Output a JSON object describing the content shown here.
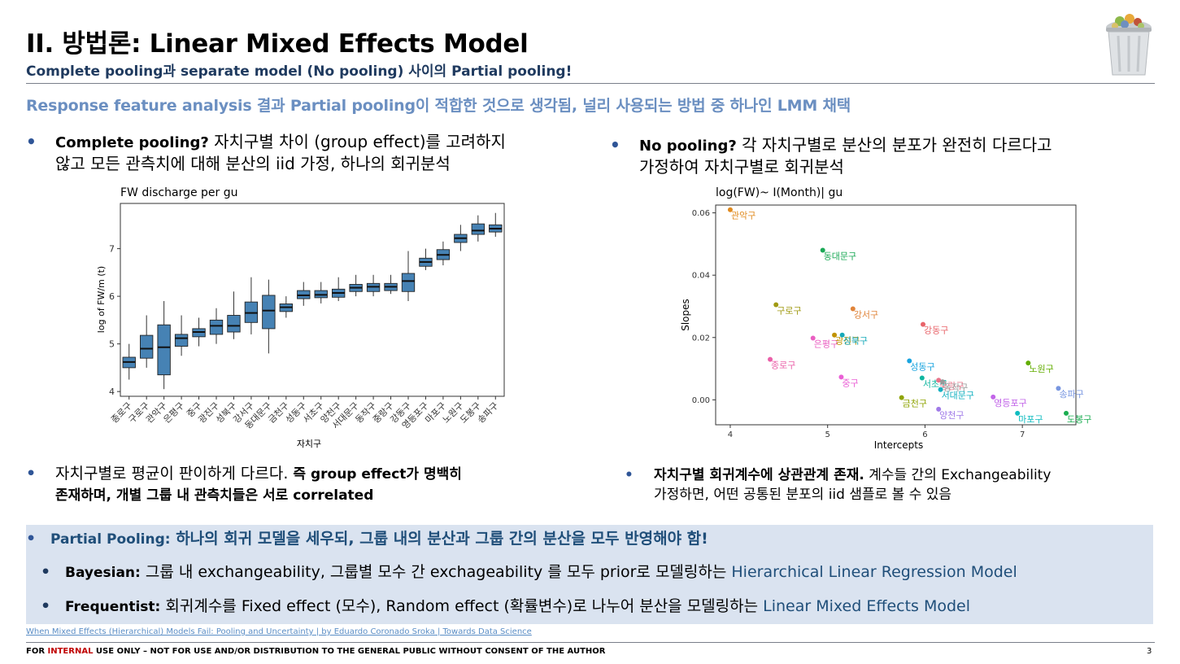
{
  "title": "II. 방법론: Linear Mixed Effects Model",
  "subtitle": "Complete pooling과  separate model (No pooling) 사이의 Partial pooling!",
  "lead": "Response feature analysis 결과 Partial pooling이 적합한 것으로 생각됨, 널리 사용되는 방법 중 하나인 LMM 채택",
  "bullet_char": "•",
  "left": {
    "bullet1_bold": "Complete pooling?",
    "bullet1_line1": " 자치구별 차이 (group effect)를 고려하지",
    "bullet1_line2": "않고 모든 관측치에 대해 분산의 iid 가정, 하나의 회귀분석",
    "bullet2_line1_a": "자치구별로 평균이 판이하게 다르다. ",
    "bullet2_line1_b": "즉 group effect가 명백히",
    "bullet2_line2": "존재하며, 개별 그룹 내 관측치들은 서로 correlated"
  },
  "right": {
    "bullet1_bold": "No pooling?",
    "bullet1_line1": " 각 자치구별로 분산의 분포가 완전히 다르다고",
    "bullet1_line2": "가정하여 자치구별로 회귀분석",
    "bullet2_bold": "자치구별 회귀계수에 상관관계 존재.",
    "bullet2_line1": " 계수들 간의 Exchangeability",
    "bullet2_line2": "가정하면, 어떤 공통된 분포의 iid 샘플로 볼 수 있음"
  },
  "box": {
    "partial_label": "Partial Pooling:",
    "partial_text": " 하나의 회귀 모델을 세우되, 그룹 내의 분산과 그룹 간의 분산을 모두 반영해야 함!",
    "bayes_label": "Bayesian:",
    "bayes_text": " 그룹 내 exchangeability, 그룹별 모수 간 exchageability 를 모두 prior로 모델링하는 ",
    "bayes_model": "Hierarchical Linear Regression Model",
    "freq_label": "Frequentist:",
    "freq_text": " 회귀계수를 Fixed effect (모수), Random effect (확률변수)로 나누어 분산을 모델링하는 ",
    "freq_model": "Linear Mixed Effects Model"
  },
  "link_text": "When Mixed Effects (Hierarchical) Models Fail: Pooling and Uncertainty | by Eduardo Coronado Sroka | Towards Data Science",
  "footer": {
    "pre": "FOR ",
    "red": "INTERNAL",
    "post": " USE ONLY – NOT FOR USE AND/OR DISTRIBUTION TO THE GENERAL PUBLIC WITHOUT CONSENT OF THE AUTHOR",
    "page": "3"
  },
  "logo_icon": "trash-can-with-food-icon",
  "chart_data": [
    {
      "type": "box",
      "title": "FW discharge per gu",
      "xlabel": "자치구",
      "ylabel": "log of FW/m (t)",
      "ylim": [
        3.9,
        7.95
      ],
      "yticks": [
        4,
        5,
        6,
        7
      ],
      "fill_color": "#4682b4",
      "grid": false,
      "categories": [
        "종로구",
        "구로구",
        "관악구",
        "은평구",
        "중구",
        "광진구",
        "성북구",
        "강서구",
        "동대문구",
        "금천구",
        "성동구",
        "서초구",
        "양천구",
        "서대문구",
        "동작구",
        "중랑구",
        "강동구",
        "영등포구",
        "마포구",
        "노원구",
        "도봉구",
        "송파구"
      ],
      "boxes": [
        {
          "whislo": 4.25,
          "q1": 4.5,
          "med": 4.62,
          "q3": 4.72,
          "whishi": 5.0
        },
        {
          "whislo": 4.5,
          "q1": 4.7,
          "med": 4.9,
          "q3": 5.18,
          "whishi": 5.6
        },
        {
          "whislo": 4.05,
          "q1": 4.35,
          "med": 4.93,
          "q3": 5.4,
          "whishi": 5.9
        },
        {
          "whislo": 4.75,
          "q1": 4.95,
          "med": 5.12,
          "q3": 5.2,
          "whishi": 5.6
        },
        {
          "whislo": 4.95,
          "q1": 5.15,
          "med": 5.25,
          "q3": 5.32,
          "whishi": 5.55
        },
        {
          "whislo": 5.0,
          "q1": 5.2,
          "med": 5.38,
          "q3": 5.5,
          "whishi": 5.75
        },
        {
          "whislo": 5.1,
          "q1": 5.25,
          "med": 5.38,
          "q3": 5.6,
          "whishi": 6.1
        },
        {
          "whislo": 5.2,
          "q1": 5.45,
          "med": 5.65,
          "q3": 5.88,
          "whishi": 6.4
        },
        {
          "whislo": 4.8,
          "q1": 5.32,
          "med": 5.7,
          "q3": 6.02,
          "whishi": 6.35
        },
        {
          "whislo": 5.55,
          "q1": 5.68,
          "med": 5.77,
          "q3": 5.84,
          "whishi": 6.0
        },
        {
          "whislo": 5.8,
          "q1": 5.95,
          "med": 6.02,
          "q3": 6.12,
          "whishi": 6.3
        },
        {
          "whislo": 5.85,
          "q1": 5.97,
          "med": 6.03,
          "q3": 6.12,
          "whishi": 6.3
        },
        {
          "whislo": 5.9,
          "q1": 5.98,
          "med": 6.07,
          "q3": 6.15,
          "whishi": 6.4
        },
        {
          "whislo": 6.0,
          "q1": 6.1,
          "med": 6.18,
          "q3": 6.25,
          "whishi": 6.45
        },
        {
          "whislo": 6.0,
          "q1": 6.1,
          "med": 6.2,
          "q3": 6.27,
          "whishi": 6.45
        },
        {
          "whislo": 6.05,
          "q1": 6.12,
          "med": 6.2,
          "q3": 6.27,
          "whishi": 6.45
        },
        {
          "whislo": 5.9,
          "q1": 6.1,
          "med": 6.32,
          "q3": 6.48,
          "whishi": 6.95
        },
        {
          "whislo": 6.55,
          "q1": 6.63,
          "med": 6.72,
          "q3": 6.8,
          "whishi": 7.0
        },
        {
          "whislo": 6.65,
          "q1": 6.77,
          "med": 6.87,
          "q3": 6.98,
          "whishi": 7.15
        },
        {
          "whislo": 6.95,
          "q1": 7.13,
          "med": 7.22,
          "q3": 7.3,
          "whishi": 7.5
        },
        {
          "whislo": 7.15,
          "q1": 7.3,
          "med": 7.38,
          "q3": 7.52,
          "whishi": 7.7
        },
        {
          "whislo": 7.25,
          "q1": 7.35,
          "med": 7.42,
          "q3": 7.5,
          "whishi": 7.75
        }
      ]
    },
    {
      "type": "scatter",
      "title": "log(FW)~ I(Month)| gu",
      "xlabel": "Intercepts",
      "ylabel": "Slopes",
      "xlim": [
        3.85,
        7.55
      ],
      "ylim": [
        -0.008,
        0.0625
      ],
      "xticks": [
        4,
        5,
        6,
        7
      ],
      "yticks": [
        0.0,
        0.02,
        0.04,
        0.06
      ],
      "ytick_labels": [
        "0.00",
        "0.02",
        "0.04",
        "0.06"
      ],
      "grid": false,
      "points": [
        {
          "label": "관악구",
          "x": 4.0,
          "y": 0.061,
          "color": "#e08a1e"
        },
        {
          "label": "동대문구",
          "x": 4.95,
          "y": 0.048,
          "color": "#1aa855"
        },
        {
          "label": "구로구",
          "x": 4.47,
          "y": 0.0305,
          "color": "#a09a12"
        },
        {
          "label": "강서구",
          "x": 5.26,
          "y": 0.0292,
          "color": "#e0843a"
        },
        {
          "label": "강동구",
          "x": 5.98,
          "y": 0.0242,
          "color": "#e8646a"
        },
        {
          "label": "은평구",
          "x": 4.85,
          "y": 0.0198,
          "color": "#ea5fc2"
        },
        {
          "label": "광진구",
          "x": 5.07,
          "y": 0.0208,
          "color": "#c09200"
        },
        {
          "label": "성북구",
          "x": 5.15,
          "y": 0.0208,
          "color": "#16a9b9"
        },
        {
          "label": "종로구",
          "x": 4.41,
          "y": 0.013,
          "color": "#ea5fa8"
        },
        {
          "label": "성동구",
          "x": 5.84,
          "y": 0.0125,
          "color": "#1aa4df"
        },
        {
          "label": "노원구",
          "x": 7.06,
          "y": 0.0118,
          "color": "#62ad00"
        },
        {
          "label": "중구",
          "x": 5.14,
          "y": 0.0073,
          "color": "#ea5fd5"
        },
        {
          "label": "서초구",
          "x": 5.97,
          "y": 0.007,
          "color": "#10b6a0"
        },
        {
          "label": "중랑구",
          "x": 6.14,
          "y": 0.0063,
          "color": "#e8738a"
        },
        {
          "label": "동작구",
          "x": 6.18,
          "y": 0.0058,
          "color": "#999999"
        },
        {
          "label": "서대문구",
          "x": 6.16,
          "y": 0.0033,
          "color": "#12b0c0"
        },
        {
          "label": "송파구",
          "x": 7.37,
          "y": 0.0037,
          "color": "#7896e0"
        },
        {
          "label": "금천구",
          "x": 5.76,
          "y": 0.0007,
          "color": "#8ea300"
        },
        {
          "label": "영등포구",
          "x": 6.7,
          "y": 0.0009,
          "color": "#c264e8"
        },
        {
          "label": "양천구",
          "x": 6.14,
          "y": -0.003,
          "color": "#a07ae8"
        },
        {
          "label": "마포구",
          "x": 6.95,
          "y": -0.0043,
          "color": "#10bcc0"
        },
        {
          "label": "도봉구",
          "x": 7.45,
          "y": -0.0043,
          "color": "#1aad50"
        }
      ]
    }
  ]
}
